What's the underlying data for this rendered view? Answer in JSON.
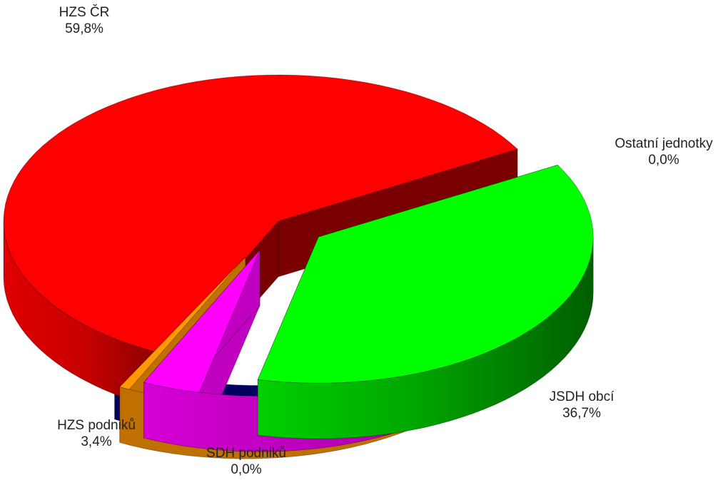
{
  "chart_data": {
    "type": "pie",
    "style": "3d-exploded",
    "slices": [
      {
        "name": "HZS ČR",
        "value": 59.8,
        "value_label": "59,8%",
        "color": "#ff0000",
        "side_color": "#c60000"
      },
      {
        "name": "JSDH obcí",
        "value": 36.7,
        "value_label": "36,7%",
        "color": "#00ff00",
        "side_color": "#009a00"
      },
      {
        "name": "HZS podniků",
        "value": 3.4,
        "value_label": "3,4%",
        "color": "#ff00ff",
        "side_color": "#c000c0"
      },
      {
        "name": "SDH podniků",
        "value": 0.0,
        "value_label": "0,0%",
        "color": "#ff9900",
        "side_color": "#c07000"
      },
      {
        "name": "Ostatní jednotky",
        "value": 0.0,
        "value_label": "0,0%",
        "color": "#000080",
        "side_color": "#000060"
      }
    ]
  }
}
